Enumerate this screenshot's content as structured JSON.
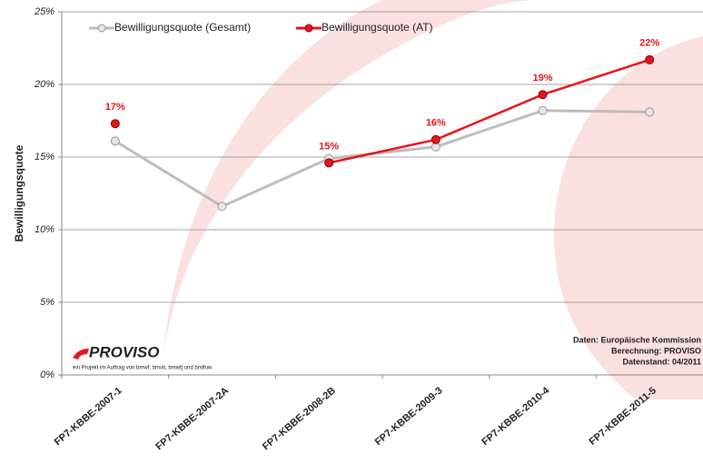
{
  "chart_data": {
    "type": "line",
    "y_label": "Bewilligungsquote",
    "categories": [
      "FP7-KBBE-2007-1",
      "FP7-KBBE-2007-2A",
      "FP7-KBBE-2008-2B",
      "FP7-KBBE-2009-3",
      "FP7-KBBE-2010-4",
      "FP7-KBBE-2011-5"
    ],
    "series": [
      {
        "name": "Bewilligungsquote (Gesamt)",
        "color": "#bdbdbd",
        "values": [
          16.1,
          11.6,
          14.9,
          15.7,
          18.2,
          18.1
        ]
      },
      {
        "name": "Bewilligungsquote (AT)",
        "color": "#e8141b",
        "values": [
          17.3,
          null,
          14.6,
          16.2,
          19.3,
          21.7
        ],
        "value_labels": [
          "17%",
          null,
          "15%",
          "16%",
          "19%",
          "22%"
        ]
      }
    ],
    "ylim": [
      0,
      25
    ],
    "yticks": [
      {
        "value": 0,
        "label": "0%"
      },
      {
        "value": 5,
        "label": "5%"
      },
      {
        "value": 10,
        "label": "10%"
      },
      {
        "value": 15,
        "label": "15%"
      },
      {
        "value": 20,
        "label": "20%"
      },
      {
        "value": 25,
        "label": "25%"
      }
    ],
    "grid": true,
    "legend": "top-left",
    "annotations": [
      "Daten: Europäische Kommission",
      "Berechnung: PROVISO",
      "Datenstand: 04/2011"
    ],
    "logo": "PROVISO",
    "logo_caption": "ein Projekt im Auftrag von bmwf, bmvit, bmwfj und bmlfuw"
  }
}
